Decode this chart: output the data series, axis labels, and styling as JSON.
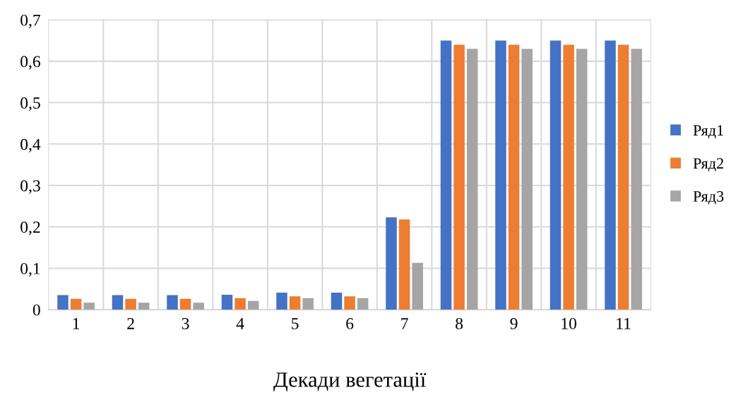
{
  "chart_data": {
    "type": "bar",
    "xlabel": "Декади вегетації",
    "categories": [
      "1",
      "2",
      "3",
      "4",
      "5",
      "6",
      "7",
      "8",
      "9",
      "10",
      "11"
    ],
    "series": [
      {
        "name": "Ряд1",
        "color": "#4472c4",
        "values": [
          0.035,
          0.035,
          0.035,
          0.036,
          0.041,
          0.041,
          0.223,
          0.65,
          0.65,
          0.65,
          0.65
        ]
      },
      {
        "name": "Ряд2",
        "color": "#ed7d31",
        "values": [
          0.026,
          0.026,
          0.026,
          0.028,
          0.032,
          0.032,
          0.218,
          0.64,
          0.64,
          0.64,
          0.64
        ]
      },
      {
        "name": "Ряд3",
        "color": "#a5a5a5",
        "values": [
          0.017,
          0.017,
          0.017,
          0.021,
          0.028,
          0.028,
          0.113,
          0.63,
          0.63,
          0.63,
          0.63
        ]
      }
    ],
    "ylim": [
      0,
      0.7
    ],
    "yticks": [
      {
        "value": 0,
        "label": "0"
      },
      {
        "value": 0.1,
        "label": "0,1"
      },
      {
        "value": 0.2,
        "label": "0,2"
      },
      {
        "value": 0.3,
        "label": "0,3"
      },
      {
        "value": 0.4,
        "label": "0,4"
      },
      {
        "value": 0.5,
        "label": "0,5"
      },
      {
        "value": 0.6,
        "label": "0,6"
      },
      {
        "value": 0.7,
        "label": "0,7"
      }
    ],
    "grid": true,
    "legend": "right"
  }
}
